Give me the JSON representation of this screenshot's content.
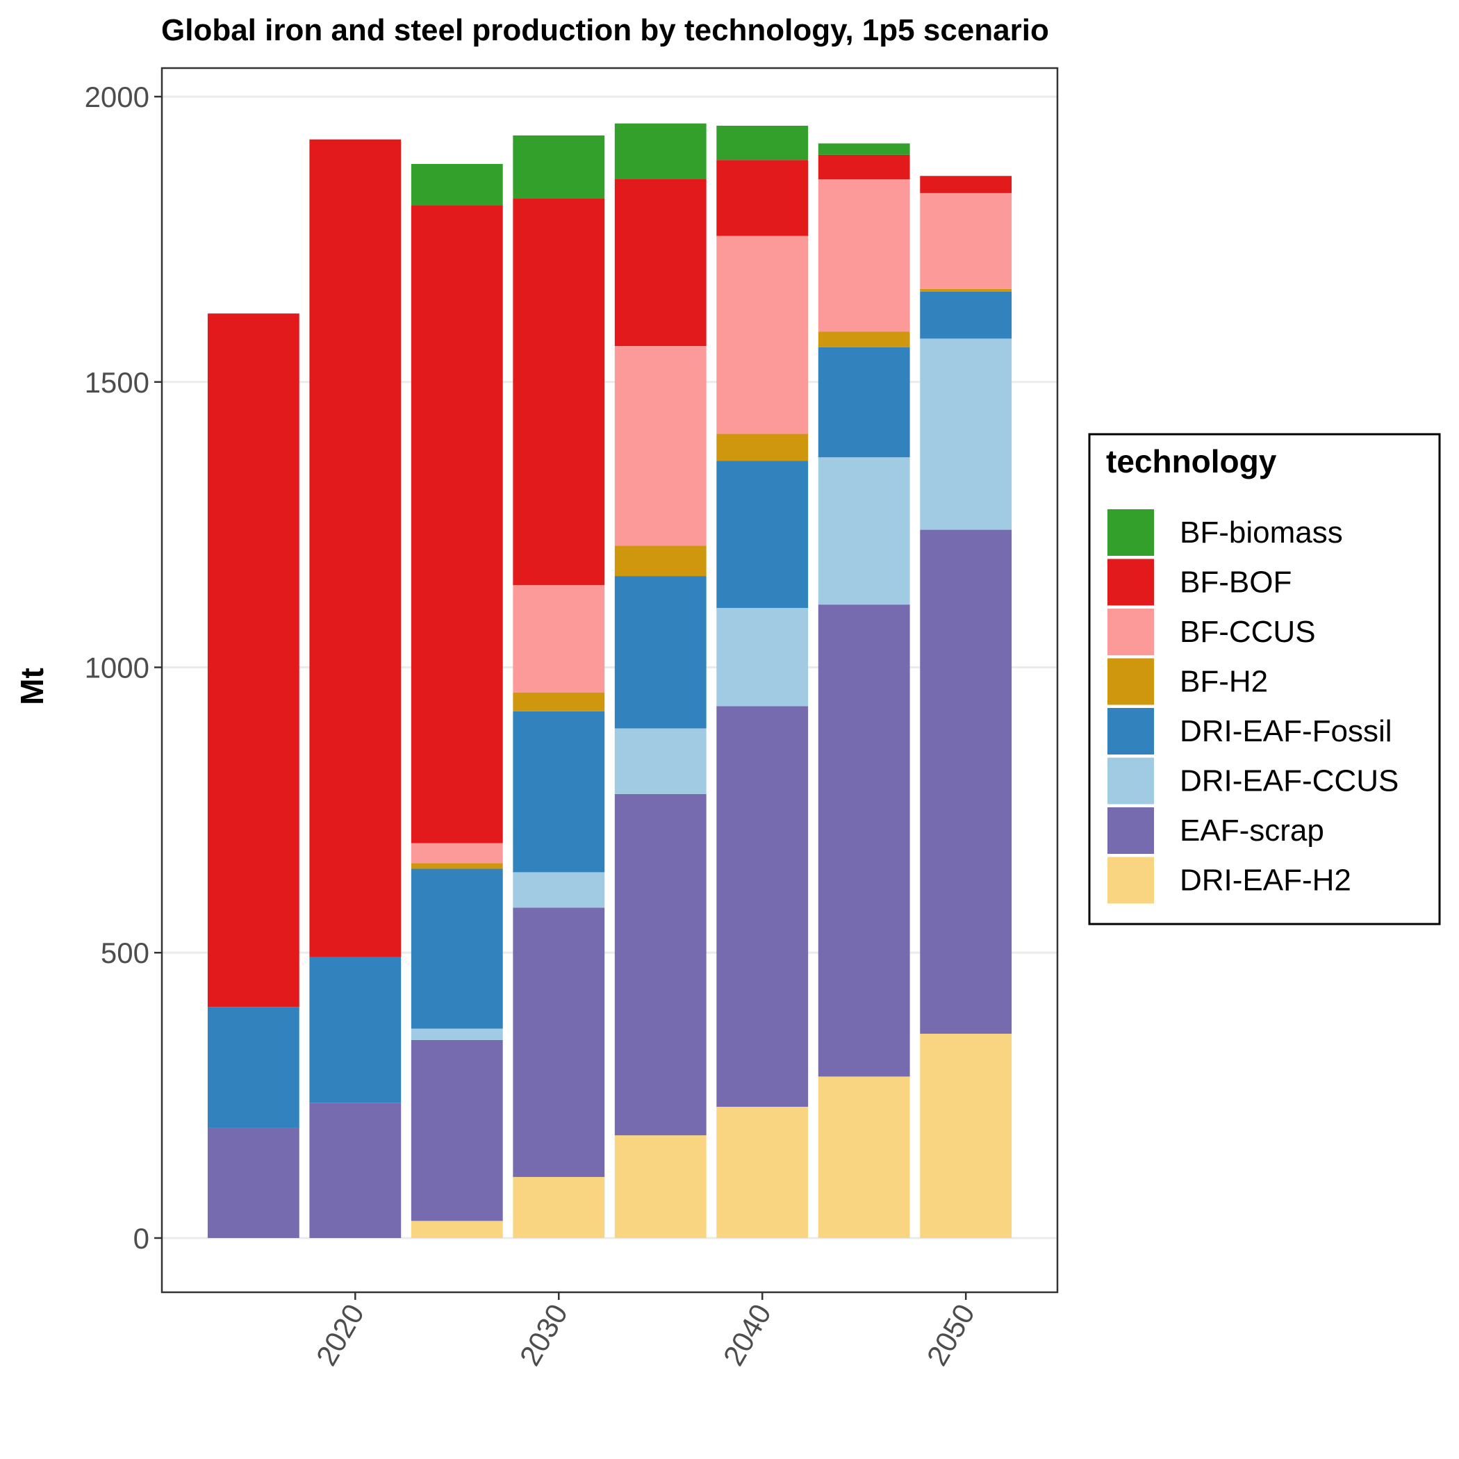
{
  "chart_data": {
    "type": "bar",
    "stacked": true,
    "title": "Global iron and steel production by technology, 1p5 scenario",
    "xlabel": "",
    "ylabel": "Mt",
    "x": [
      2015,
      2020,
      2025,
      2030,
      2035,
      2040,
      2045,
      2050
    ],
    "xticks": [
      "2020",
      "2030",
      "2040",
      "2050"
    ],
    "xtick_values": [
      2020,
      2030,
      2040,
      2050
    ],
    "yticks": [
      "0",
      "500",
      "1000",
      "1500",
      "2000"
    ],
    "ytick_values": [
      0,
      500,
      1000,
      1500,
      2000
    ],
    "ylim": [
      -95,
      2050
    ],
    "xlim": [
      2010.5,
      2054.5
    ],
    "grid": true,
    "legend": {
      "title": "technology",
      "placement": "right"
    },
    "series": [
      {
        "name": "DRI-EAF-H2",
        "color": "#fad581",
        "values": [
          0,
          0,
          30,
          107,
          180,
          230,
          283,
          358
        ]
      },
      {
        "name": "EAF-scrap",
        "color": "#776bb0",
        "values": [
          193,
          237,
          317,
          472,
          598,
          702,
          827,
          883
        ]
      },
      {
        "name": "DRI-EAF-CCUS",
        "color": "#a1cbe2",
        "values": [
          0,
          0,
          20,
          62,
          115,
          172,
          258,
          335
        ]
      },
      {
        "name": "DRI-EAF-Fossil",
        "color": "#3282bd",
        "values": [
          212,
          255,
          280,
          282,
          267,
          258,
          193,
          82
        ]
      },
      {
        "name": "BF-H2",
        "color": "#cf970e",
        "values": [
          0,
          0,
          10,
          33,
          53,
          47,
          27,
          5
        ]
      },
      {
        "name": "BF-CCUS",
        "color": "#fb9a99",
        "values": [
          0,
          0,
          35,
          188,
          350,
          347,
          267,
          168
        ]
      },
      {
        "name": "BF-BOF",
        "color": "#e31a1c",
        "values": [
          1215,
          1433,
          1118,
          678,
          293,
          133,
          43,
          30
        ]
      },
      {
        "name": "BF-biomass",
        "color": "#33a02c",
        "values": [
          0,
          0,
          72,
          110,
          97,
          60,
          20,
          0
        ]
      }
    ],
    "legend_order": [
      "BF-biomass",
      "BF-BOF",
      "BF-CCUS",
      "BF-H2",
      "DRI-EAF-Fossil",
      "DRI-EAF-CCUS",
      "EAF-scrap",
      "DRI-EAF-H2"
    ]
  }
}
